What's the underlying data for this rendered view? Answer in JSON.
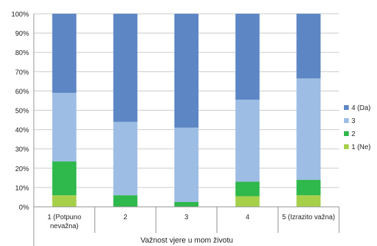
{
  "chart_data": {
    "type": "bar",
    "stacked": true,
    "percent": true,
    "xlabel": "Važnost vjere u mom životu",
    "ylabel": "",
    "ylim": [
      0,
      100
    ],
    "yticks": [
      "0%",
      "10%",
      "20%",
      "30%",
      "40%",
      "50%",
      "60%",
      "70%",
      "80%",
      "90%",
      "100%"
    ],
    "categories": [
      [
        "1 (Potpuno",
        "nevažna)"
      ],
      [
        "2"
      ],
      [
        "3"
      ],
      [
        "4"
      ],
      [
        "5 (Izrazito važna)"
      ]
    ],
    "series": [
      {
        "name": "1 (Ne)",
        "color": "#a6d04a",
        "values": [
          6,
          0,
          0,
          5.5,
          6
        ]
      },
      {
        "name": "2",
        "color": "#2fb84c",
        "values": [
          17.5,
          6,
          2.5,
          7.5,
          8
        ]
      },
      {
        "name": "3",
        "color": "#9dbde4",
        "values": [
          35.5,
          38,
          38.5,
          42.5,
          52.5
        ]
      },
      {
        "name": "4 (Da)",
        "color": "#5d87c4",
        "values": [
          41,
          56,
          59,
          44.5,
          33.5
        ]
      }
    ],
    "grid": true,
    "legend": "right"
  }
}
